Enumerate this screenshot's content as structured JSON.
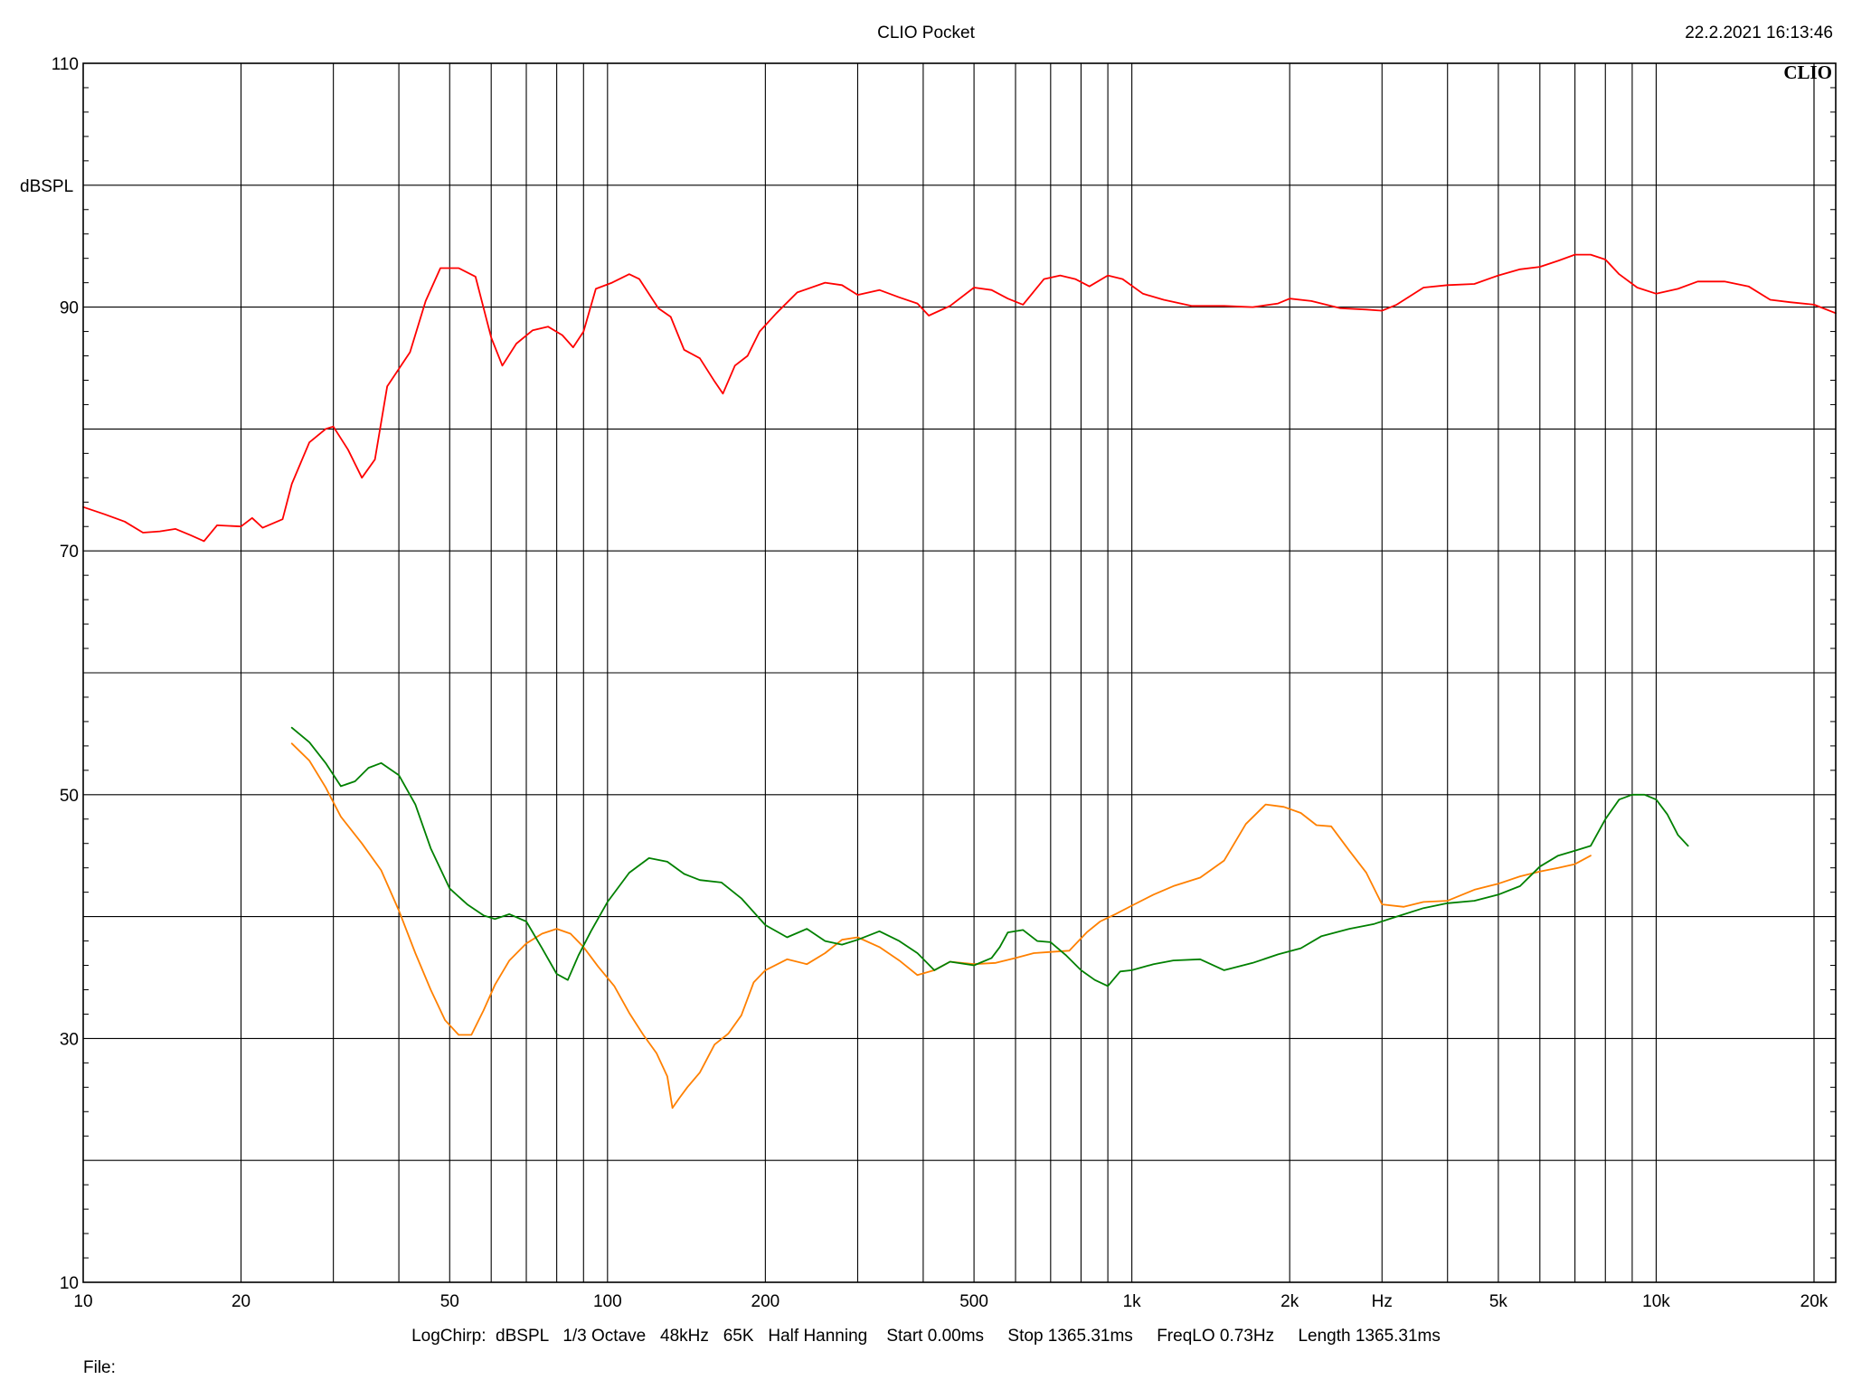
{
  "header": {
    "title": "CLIO Pocket",
    "timestamp": "22.2.2021 16:13:46",
    "logo": "CLIO"
  },
  "footer": {
    "settings": "LogChirp:  dBSPL   1/3 Octave   48kHz   65K   Half Hanning    Start 0.00ms     Stop 1365.31ms     FreqLO 0.73Hz     Length 1365.31ms",
    "file_label": "File:"
  },
  "chart_data": {
    "type": "line",
    "title": "CLIO Pocket",
    "xlabel": "Hz",
    "ylabel": "dBSPL",
    "xscale": "log",
    "xlim": [
      10,
      22000
    ],
    "ylim": [
      10,
      110
    ],
    "grid": true,
    "x_ticks": [
      {
        "value": 10,
        "label": "10"
      },
      {
        "value": 20,
        "label": "20"
      },
      {
        "value": 50,
        "label": "50"
      },
      {
        "value": 100,
        "label": "100"
      },
      {
        "value": 200,
        "label": "200"
      },
      {
        "value": 500,
        "label": "500"
      },
      {
        "value": 1000,
        "label": "1k"
      },
      {
        "value": 2000,
        "label": "2k"
      },
      {
        "value": 5000,
        "label": "5k"
      },
      {
        "value": 10000,
        "label": "10k"
      },
      {
        "value": 20000,
        "label": "20k"
      }
    ],
    "x_unit_value": 3000,
    "y_ticks": [
      {
        "value": 110,
        "label": "110"
      },
      {
        "value": 90,
        "label": "90"
      },
      {
        "value": 70,
        "label": "70"
      },
      {
        "value": 50,
        "label": "50"
      },
      {
        "value": 30,
        "label": "30"
      },
      {
        "value": 10,
        "label": "10"
      }
    ],
    "y_unit_value": 100,
    "series": [
      {
        "color": "#ff0000",
        "points": [
          [
            10,
            73.6
          ],
          [
            11,
            73
          ],
          [
            12,
            72.4
          ],
          [
            13,
            71.5
          ],
          [
            14,
            71.6
          ],
          [
            15,
            71.8
          ],
          [
            16,
            71.3
          ],
          [
            17,
            70.8
          ],
          [
            18,
            72.1
          ],
          [
            20,
            72
          ],
          [
            21,
            72.7
          ],
          [
            22,
            71.9
          ],
          [
            24,
            72.6
          ],
          [
            25,
            75.5
          ],
          [
            27,
            78.9
          ],
          [
            29,
            80
          ],
          [
            30,
            80.2
          ],
          [
            32,
            78.3
          ],
          [
            34,
            76
          ],
          [
            36,
            77.5
          ],
          [
            38,
            83.5
          ],
          [
            42,
            86.3
          ],
          [
            45,
            90.5
          ],
          [
            48,
            93.2
          ],
          [
            52,
            93.2
          ],
          [
            56,
            92.5
          ],
          [
            60,
            87.5
          ],
          [
            63,
            85.2
          ],
          [
            67,
            87
          ],
          [
            72,
            88.1
          ],
          [
            77,
            88.4
          ],
          [
            82,
            87.7
          ],
          [
            86,
            86.7
          ],
          [
            90,
            88
          ],
          [
            95,
            91.5
          ],
          [
            102,
            92
          ],
          [
            110,
            92.7
          ],
          [
            115,
            92.3
          ],
          [
            125,
            89.9
          ],
          [
            132,
            89.2
          ],
          [
            140,
            86.5
          ],
          [
            150,
            85.8
          ],
          [
            160,
            83.9
          ],
          [
            166,
            82.9
          ],
          [
            175,
            85.2
          ],
          [
            185,
            86
          ],
          [
            195,
            88
          ],
          [
            210,
            89.5
          ],
          [
            230,
            91.2
          ],
          [
            260,
            92
          ],
          [
            280,
            91.8
          ],
          [
            300,
            91
          ],
          [
            330,
            91.4
          ],
          [
            360,
            90.8
          ],
          [
            390,
            90.3
          ],
          [
            410,
            89.3
          ],
          [
            450,
            90.1
          ],
          [
            500,
            91.6
          ],
          [
            540,
            91.4
          ],
          [
            580,
            90.7
          ],
          [
            620,
            90.2
          ],
          [
            680,
            92.3
          ],
          [
            730,
            92.6
          ],
          [
            780,
            92.3
          ],
          [
            830,
            91.7
          ],
          [
            900,
            92.6
          ],
          [
            960,
            92.3
          ],
          [
            1050,
            91.1
          ],
          [
            1150,
            90.6
          ],
          [
            1300,
            90.1
          ],
          [
            1500,
            90.1
          ],
          [
            1700,
            90
          ],
          [
            1900,
            90.3
          ],
          [
            2000,
            90.7
          ],
          [
            2200,
            90.5
          ],
          [
            2500,
            89.9
          ],
          [
            2800,
            89.8
          ],
          [
            3000,
            89.7
          ],
          [
            3200,
            90.2
          ],
          [
            3600,
            91.6
          ],
          [
            4000,
            91.8
          ],
          [
            4500,
            91.9
          ],
          [
            5000,
            92.6
          ],
          [
            5500,
            93.1
          ],
          [
            6000,
            93.3
          ],
          [
            6500,
            93.8
          ],
          [
            7000,
            94.3
          ],
          [
            7500,
            94.3
          ],
          [
            8000,
            93.9
          ],
          [
            8500,
            92.7
          ],
          [
            9200,
            91.6
          ],
          [
            10000,
            91.1
          ],
          [
            11000,
            91.5
          ],
          [
            12000,
            92.1
          ],
          [
            13500,
            92.1
          ],
          [
            15000,
            91.7
          ],
          [
            16500,
            90.6
          ],
          [
            18000,
            90.4
          ],
          [
            20000,
            90.2
          ],
          [
            22000,
            89.5
          ]
        ]
      },
      {
        "color": "#ff8000",
        "points": [
          [
            25,
            54.2
          ],
          [
            27,
            52.8
          ],
          [
            29,
            50.6
          ],
          [
            31,
            48.2
          ],
          [
            34,
            46
          ],
          [
            37,
            43.8
          ],
          [
            40,
            40.5
          ],
          [
            43,
            37
          ],
          [
            46,
            34
          ],
          [
            49,
            31.5
          ],
          [
            52,
            30.3
          ],
          [
            55,
            30.3
          ],
          [
            58,
            32.3
          ],
          [
            61,
            34.4
          ],
          [
            65,
            36.4
          ],
          [
            70,
            37.8
          ],
          [
            75,
            38.6
          ],
          [
            80,
            39
          ],
          [
            85,
            38.6
          ],
          [
            90,
            37.5
          ],
          [
            96,
            35.9
          ],
          [
            103,
            34.3
          ],
          [
            110,
            32.1
          ],
          [
            117,
            30.3
          ],
          [
            124,
            28.8
          ],
          [
            130,
            26.9
          ],
          [
            133,
            24.3
          ],
          [
            137,
            25.1
          ],
          [
            142,
            26
          ],
          [
            150,
            27.2
          ],
          [
            160,
            29.5
          ],
          [
            170,
            30.4
          ],
          [
            180,
            31.9
          ],
          [
            190,
            34.6
          ],
          [
            200,
            35.6
          ],
          [
            220,
            36.5
          ],
          [
            240,
            36.1
          ],
          [
            260,
            37
          ],
          [
            280,
            38.1
          ],
          [
            300,
            38.3
          ],
          [
            330,
            37.5
          ],
          [
            360,
            36.4
          ],
          [
            390,
            35.2
          ],
          [
            420,
            35.6
          ],
          [
            450,
            36.3
          ],
          [
            500,
            36.1
          ],
          [
            550,
            36.2
          ],
          [
            600,
            36.6
          ],
          [
            650,
            37
          ],
          [
            700,
            37.1
          ],
          [
            760,
            37.2
          ],
          [
            820,
            38.7
          ],
          [
            870,
            39.6
          ],
          [
            930,
            40.2
          ],
          [
            1000,
            40.9
          ],
          [
            1100,
            41.8
          ],
          [
            1200,
            42.5
          ],
          [
            1350,
            43.2
          ],
          [
            1500,
            44.6
          ],
          [
            1650,
            47.6
          ],
          [
            1800,
            49.2
          ],
          [
            1950,
            49
          ],
          [
            2100,
            48.5
          ],
          [
            2250,
            47.5
          ],
          [
            2400,
            47.4
          ],
          [
            2600,
            45.4
          ],
          [
            2800,
            43.6
          ],
          [
            3000,
            41
          ],
          [
            3300,
            40.8
          ],
          [
            3600,
            41.2
          ],
          [
            4000,
            41.3
          ],
          [
            4500,
            42.2
          ],
          [
            5000,
            42.7
          ],
          [
            5500,
            43.3
          ],
          [
            6000,
            43.7
          ],
          [
            6500,
            44
          ],
          [
            7000,
            44.3
          ],
          [
            7500,
            45
          ]
        ]
      },
      {
        "color": "#008000",
        "points": [
          [
            25,
            55.5
          ],
          [
            27,
            54.3
          ],
          [
            29,
            52.6
          ],
          [
            31,
            50.7
          ],
          [
            33,
            51.1
          ],
          [
            35,
            52.2
          ],
          [
            37,
            52.6
          ],
          [
            40,
            51.6
          ],
          [
            43,
            49.2
          ],
          [
            46,
            45.6
          ],
          [
            50,
            42.3
          ],
          [
            54,
            41
          ],
          [
            58,
            40.1
          ],
          [
            61,
            39.8
          ],
          [
            65,
            40.2
          ],
          [
            70,
            39.6
          ],
          [
            75,
            37.4
          ],
          [
            80,
            35.3
          ],
          [
            84,
            34.8
          ],
          [
            88,
            36.8
          ],
          [
            93,
            38.8
          ],
          [
            100,
            41.2
          ],
          [
            110,
            43.6
          ],
          [
            120,
            44.8
          ],
          [
            130,
            44.5
          ],
          [
            140,
            43.5
          ],
          [
            150,
            43
          ],
          [
            165,
            42.8
          ],
          [
            180,
            41.5
          ],
          [
            200,
            39.3
          ],
          [
            220,
            38.3
          ],
          [
            240,
            39
          ],
          [
            260,
            38
          ],
          [
            280,
            37.7
          ],
          [
            300,
            38.1
          ],
          [
            330,
            38.8
          ],
          [
            360,
            38
          ],
          [
            390,
            37
          ],
          [
            420,
            35.6
          ],
          [
            450,
            36.3
          ],
          [
            500,
            36
          ],
          [
            540,
            36.6
          ],
          [
            560,
            37.5
          ],
          [
            580,
            38.7
          ],
          [
            620,
            38.9
          ],
          [
            660,
            38
          ],
          [
            700,
            37.9
          ],
          [
            750,
            36.8
          ],
          [
            800,
            35.6
          ],
          [
            850,
            34.8
          ],
          [
            900,
            34.3
          ],
          [
            950,
            35.5
          ],
          [
            1000,
            35.6
          ],
          [
            1100,
            36.1
          ],
          [
            1200,
            36.4
          ],
          [
            1350,
            36.5
          ],
          [
            1500,
            35.6
          ],
          [
            1700,
            36.2
          ],
          [
            1900,
            36.9
          ],
          [
            2100,
            37.4
          ],
          [
            2300,
            38.4
          ],
          [
            2600,
            39
          ],
          [
            2900,
            39.4
          ],
          [
            3200,
            40
          ],
          [
            3600,
            40.7
          ],
          [
            4000,
            41.1
          ],
          [
            4500,
            41.3
          ],
          [
            5000,
            41.8
          ],
          [
            5500,
            42.5
          ],
          [
            6000,
            44.1
          ],
          [
            6500,
            45
          ],
          [
            7000,
            45.4
          ],
          [
            7500,
            45.8
          ],
          [
            8000,
            48
          ],
          [
            8500,
            49.6
          ],
          [
            9000,
            50
          ],
          [
            9500,
            50
          ],
          [
            10000,
            49.6
          ],
          [
            10500,
            48.4
          ],
          [
            11000,
            46.7
          ],
          [
            11500,
            45.8
          ]
        ]
      }
    ]
  }
}
